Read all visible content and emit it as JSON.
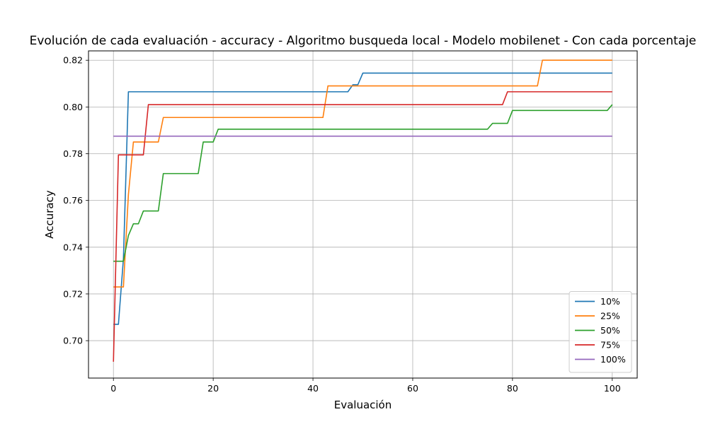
{
  "chart_data": {
    "type": "line",
    "title": "Evolución de cada evaluación - accuracy - Algoritmo busqueda local - Modelo mobilenet - Con cada porcentaje",
    "xlabel": "Evaluación",
    "ylabel": "Accuracy",
    "xlim": [
      -5,
      105
    ],
    "ylim": [
      0.684,
      0.824
    ],
    "xticks": [
      0,
      20,
      40,
      60,
      80,
      100
    ],
    "yticks": [
      0.7,
      0.72,
      0.74,
      0.76,
      0.78,
      0.8,
      0.82
    ],
    "grid": true,
    "legend_position": "lower right",
    "series": [
      {
        "name": "10%",
        "color": "#1f77b4",
        "points": [
          [
            0,
            0.707
          ],
          [
            1,
            0.707
          ],
          [
            2,
            0.735
          ],
          [
            3,
            0.8065
          ],
          [
            47,
            0.8065
          ],
          [
            48,
            0.8095
          ],
          [
            49,
            0.8095
          ],
          [
            50,
            0.8145
          ],
          [
            100,
            0.8145
          ]
        ]
      },
      {
        "name": "25%",
        "color": "#ff7f0e",
        "points": [
          [
            0,
            0.723
          ],
          [
            2,
            0.723
          ],
          [
            3,
            0.7625
          ],
          [
            4,
            0.785
          ],
          [
            9,
            0.785
          ],
          [
            10,
            0.7955
          ],
          [
            42,
            0.7955
          ],
          [
            43,
            0.809
          ],
          [
            85,
            0.809
          ],
          [
            86,
            0.82
          ],
          [
            100,
            0.82
          ]
        ]
      },
      {
        "name": "50%",
        "color": "#2ca02c",
        "points": [
          [
            0,
            0.734
          ],
          [
            2,
            0.734
          ],
          [
            3,
            0.745
          ],
          [
            4,
            0.75
          ],
          [
            5,
            0.75
          ],
          [
            6,
            0.7555
          ],
          [
            9,
            0.7555
          ],
          [
            10,
            0.7715
          ],
          [
            17,
            0.7715
          ],
          [
            18,
            0.785
          ],
          [
            20,
            0.785
          ],
          [
            21,
            0.7905
          ],
          [
            75,
            0.7905
          ],
          [
            76,
            0.793
          ],
          [
            79,
            0.793
          ],
          [
            80,
            0.7985
          ],
          [
            99,
            0.7985
          ],
          [
            100,
            0.801
          ]
        ]
      },
      {
        "name": "75%",
        "color": "#d62728",
        "points": [
          [
            0,
            0.691
          ],
          [
            1,
            0.7795
          ],
          [
            6,
            0.7795
          ],
          [
            7,
            0.801
          ],
          [
            78,
            0.801
          ],
          [
            79,
            0.8065
          ],
          [
            100,
            0.8065
          ]
        ]
      },
      {
        "name": "100%",
        "color": "#9467bd",
        "points": [
          [
            0,
            0.7875
          ],
          [
            100,
            0.7875
          ]
        ]
      }
    ]
  }
}
